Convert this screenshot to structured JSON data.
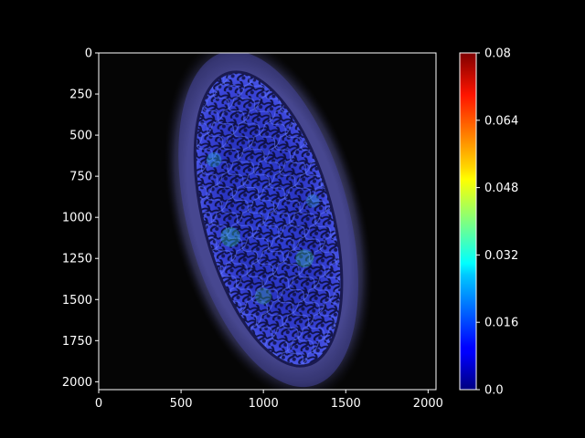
{
  "chart_data": {
    "type": "heatmap",
    "title": "",
    "xlabel": "",
    "ylabel": "",
    "xlim": [
      0,
      2048
    ],
    "ylim": [
      2048,
      0
    ],
    "x_ticks": [
      "0",
      "500",
      "1000",
      "1500",
      "2000"
    ],
    "y_ticks": [
      "0",
      "250",
      "500",
      "750",
      "1000",
      "1250",
      "1500",
      "1750",
      "2000"
    ],
    "x_tick_values": [
      0,
      500,
      1000,
      1500,
      2000
    ],
    "y_tick_values": [
      0,
      250,
      500,
      750,
      1000,
      1250,
      1500,
      1750,
      2000
    ],
    "colorbar": {
      "colormap": "jet",
      "range": [
        0.0,
        0.08
      ],
      "ticks": [
        "0.0",
        "0.016",
        "0.032",
        "0.048",
        "0.064",
        "0.08"
      ],
      "tick_values": [
        0.0,
        0.016,
        0.032,
        0.048,
        0.064,
        0.08
      ]
    },
    "image_content": {
      "shape": "tilted elliptical cross-section",
      "center": [
        1030,
        1010
      ],
      "outer_semi_axes": [
        1050,
        490
      ],
      "inner_semi_axes": [
        920,
        390
      ],
      "rotation_deg": 75
    },
    "background_color": "#000000",
    "axis_color": "#ffffff"
  }
}
